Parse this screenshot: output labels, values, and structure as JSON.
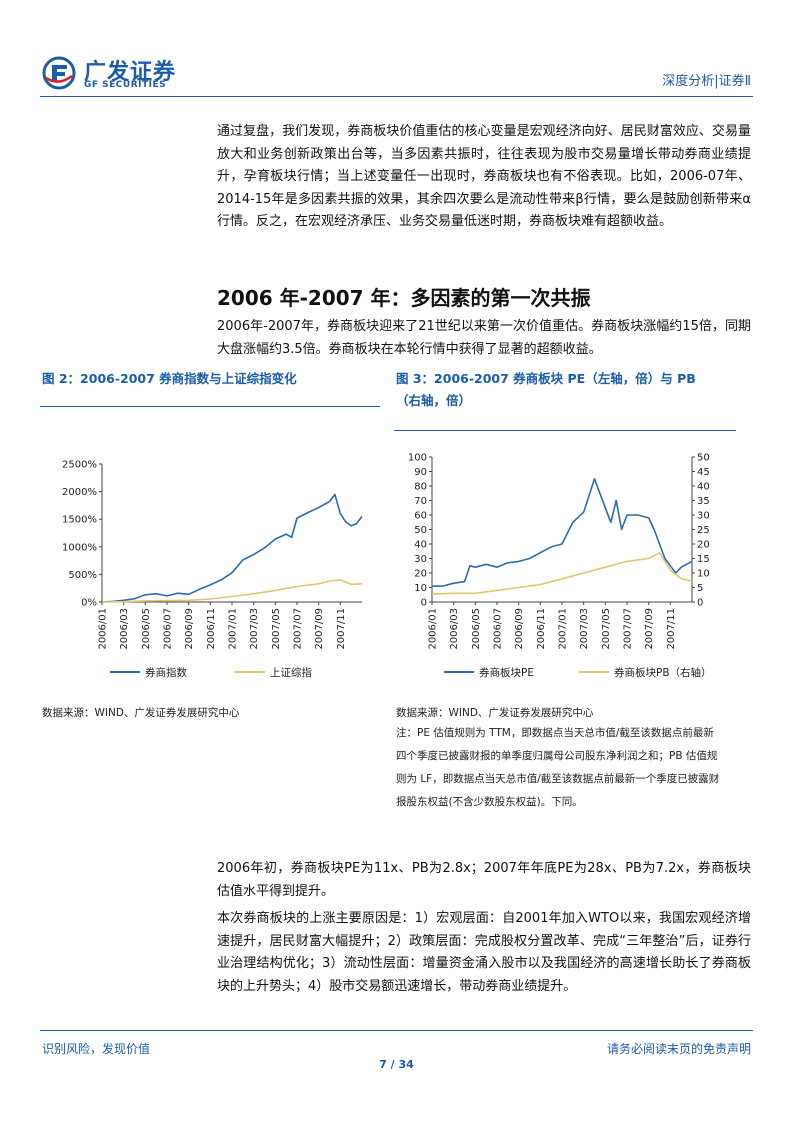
{
  "header": {
    "brand_cn": "广发证券",
    "brand_en": "GF SECURITIES",
    "section": "深度分析|证券Ⅱ"
  },
  "intro_paragraph": "通过复盘，我们发现，券商板块价值重估的核心变量是宏观经济向好、居民财富效应、交易量放大和业务创新政策出台等，当多因素共振时，往往表现为股市交易量增长带动券商业绩提升，孕育板块行情；当上述变量任一出现时，券商板块也有不俗表现。比如，2006-07年、2014-15年是多因素共振的效果，其余四次要么是流动性带来β行情，要么是鼓励创新带来α行情。反之，在宏观经济承压、业务交易量低迷时期，券商板块难有超额收益。",
  "section_heading": "2006 年-2007 年：多因素的第一次共振",
  "section_paragraph": "2006年-2007年，券商板块迎来了21世纪以来第一次价值重估。券商板块涨幅约15倍，同期大盘涨幅约3.5倍。券商板块在本轮行情中获得了显著的超额收益。",
  "figure2": {
    "title": "图 2：2006-2007 券商指数与上证综指变化",
    "source": "数据来源：WIND、广发证券发展研究中心"
  },
  "figure3": {
    "title_line1": "图 3：2006-2007 券商板块 PE（左轴，倍）与 PB",
    "title_line2": "（右轴，倍）",
    "source": "数据来源：WIND、广发证券发展研究中心",
    "note": "注：PE 估值规则为 TTM，即数据点当天总市值/截至该数据点前最新四个季度已披露财报的单季度归属母公司股东净利润之和；PB 估值规则为 LF，即数据点当天总市值/截至该数据点前最新一个季度已披露财报股东权益(不含少数股东权益)。下同。"
  },
  "paragraph_3": "2006年初，券商板块PE为11x、PB为2.8x；2007年年底PE为28x、PB为7.2x，券商板块估值水平得到提升。",
  "paragraph_4": "本次券商板块的上涨主要原因是：1）宏观层面：自2001年加入WTO以来，我国宏观经济增速提升，居民财富大幅提升；2）政策层面：完成股权分置改革、完成“三年整治”后，证券行业治理结构优化；3）流动性层面：增量资金涌入股市以及我国经济的高速增长助长了券商板块的上升势头；4）股市交易额迅速增长，带动券商业绩提升。",
  "footer": {
    "left": "识别风险，发现价值",
    "right": "请务必阅读末页的免责声明",
    "page": "7 / 34"
  },
  "colors": {
    "brand_blue": "#1a5ca8",
    "series_blue": "#2b6cb0",
    "series_gold": "#e5c46b"
  },
  "chart_data": [
    {
      "type": "line",
      "x_ticks": [
        "2006/01",
        "2006/03",
        "2006/05",
        "2006/07",
        "2006/09",
        "2006/11",
        "2007/01",
        "2007/03",
        "2007/05",
        "2007/07",
        "2007/09",
        "2007/11"
      ],
      "y_ticks": [
        "0%",
        "500%",
        "1000%",
        "1500%",
        "2000%",
        "2500%"
      ],
      "ylim": [
        0,
        2500
      ],
      "xlim": [
        0,
        24
      ],
      "legend_position": "bottom",
      "series": [
        {
          "name": "券商指数",
          "color": "#2b6cb0",
          "x": [
            0,
            1,
            2,
            3,
            4,
            5,
            6,
            7,
            8,
            9,
            10,
            11,
            12,
            13,
            14,
            15,
            16,
            17,
            17.5,
            18,
            19,
            20,
            21,
            21.5,
            22,
            22.5,
            23,
            23.5,
            24
          ],
          "values": [
            0,
            10,
            30,
            60,
            130,
            150,
            110,
            160,
            140,
            230,
            310,
            400,
            530,
            760,
            860,
            980,
            1140,
            1230,
            1170,
            1520,
            1620,
            1710,
            1820,
            1950,
            1600,
            1450,
            1380,
            1420,
            1550
          ]
        },
        {
          "name": "上证综指",
          "color": "#e5c46b",
          "x": [
            0,
            2,
            4,
            6,
            8,
            10,
            12,
            14,
            16,
            18,
            20,
            21,
            22,
            23,
            24
          ],
          "values": [
            0,
            5,
            20,
            25,
            30,
            55,
            100,
            150,
            210,
            280,
            330,
            380,
            400,
            320,
            330
          ]
        }
      ]
    },
    {
      "type": "line",
      "x_ticks": [
        "2006/01",
        "2006/03",
        "2006/05",
        "2006/07",
        "2006/09",
        "2006/11",
        "2007/01",
        "2007/03",
        "2007/05",
        "2007/07",
        "2007/09",
        "2007/11"
      ],
      "y_left_ticks": [
        "0",
        "10",
        "20",
        "30",
        "40",
        "50",
        "60",
        "70",
        "80",
        "90",
        "100"
      ],
      "y_right_ticks": [
        "0",
        "5",
        "10",
        "15",
        "20",
        "25",
        "30",
        "35",
        "40",
        "45",
        "50"
      ],
      "ylim_left": [
        0,
        100
      ],
      "ylim_right": [
        0,
        50
      ],
      "xlim": [
        0,
        24
      ],
      "legend_position": "bottom",
      "series": [
        {
          "name": "券商板块PE",
          "color": "#2b6cb0",
          "axis": "left",
          "x": [
            0,
            1,
            2,
            3,
            3.5,
            4,
            5,
            6,
            7,
            8,
            9,
            10,
            11,
            12,
            13,
            14,
            15,
            15.5,
            16,
            16.5,
            17,
            17.5,
            18,
            19,
            20,
            20.5,
            21,
            21.5,
            22,
            22.5,
            23,
            24
          ],
          "values": [
            11,
            11,
            13,
            14,
            25,
            24,
            26,
            24,
            27,
            28,
            30,
            34,
            38,
            40,
            55,
            62,
            85,
            75,
            65,
            55,
            70,
            50,
            60,
            60,
            58,
            50,
            40,
            30,
            25,
            20,
            24,
            28
          ]
        },
        {
          "name": "券商板块PB（右轴）",
          "color": "#e5c46b",
          "axis": "right",
          "x": [
            0,
            2,
            4,
            6,
            8,
            10,
            12,
            14,
            16,
            18,
            20,
            21,
            21.5,
            22,
            23,
            24
          ],
          "values": [
            2.8,
            3,
            3,
            4,
            5,
            6,
            8,
            10,
            12,
            14,
            15,
            17,
            14,
            11,
            8,
            7.2
          ]
        }
      ]
    }
  ]
}
